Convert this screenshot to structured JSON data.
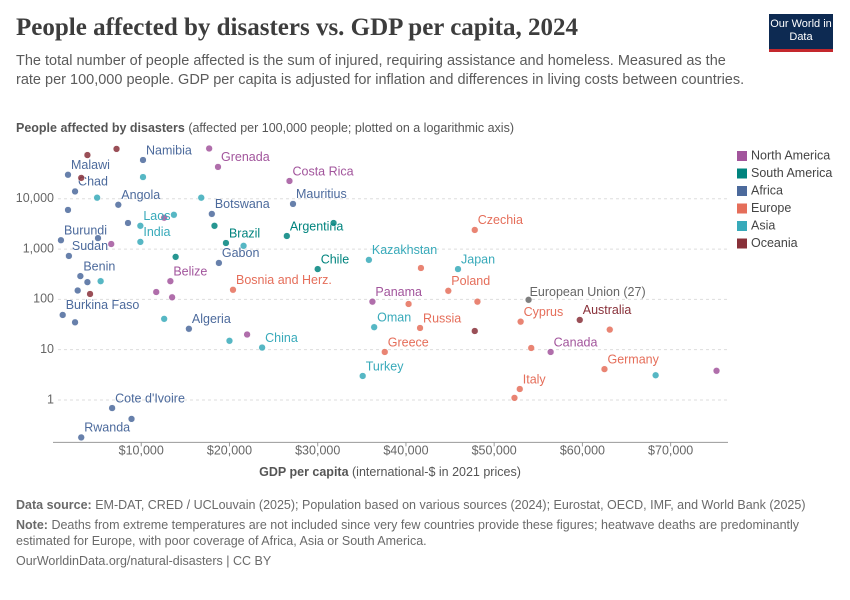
{
  "chart_data": {
    "type": "scatter",
    "title": "People affected by disasters vs. GDP per capita, 2024",
    "subtitle": "The total number of people affected is the sum of injured, requiring assistance and homeless. Measured as the rate per 100,000 people. GDP per capita is adjusted for inflation and differences in living costs between countries.",
    "logo": "Our World in Data",
    "y_label_bold": "People affected by disasters",
    "y_label_rest": "(affected per 100,000 people; plotted on a logarithmic axis)",
    "x_label_bold": "GDP per capita",
    "x_label_rest": "(international-$ in 2021 prices)",
    "source_bold": "Data source:",
    "source": "EM-DAT, CRED / UCLouvain (2025); Population based on various sources (2024); Eurostat, OECD, IMF, and World Bank (2025)",
    "note_bold": "Note:",
    "note": "Deaths from extreme temperatures are not included since very few countries provide these figures; heatwave deaths are predominantly estimated for Europe, with poor coverage of Africa, Asia or South America.",
    "url": "OurWorldinData.org/natural-disasters | CC BY",
    "log_y": true,
    "grid": true,
    "legend": "right",
    "xlim": [
      0,
      76500
    ],
    "ylim": [
      0.15,
      120000
    ],
    "xticks": [
      {
        "value": 10000,
        "label": "$10,000"
      },
      {
        "value": 20000,
        "label": "$20,000"
      },
      {
        "value": 30000,
        "label": "$30,000"
      },
      {
        "value": 40000,
        "label": "$40,000"
      },
      {
        "value": 50000,
        "label": "$50,000"
      },
      {
        "value": 60000,
        "label": "$60,000"
      },
      {
        "value": 70000,
        "label": "$70,000"
      }
    ],
    "yticks": [
      1,
      10,
      100,
      {
        "value": 1000,
        "label": "1,000"
      },
      {
        "value": 10000,
        "label": "10,000"
      }
    ],
    "series": [
      {
        "name": "North America",
        "color": "#a2559c",
        "x": [
          18700,
          17700,
          26800,
          13300,
          11700,
          13500,
          12600,
          22000,
          36200,
          56400,
          75200,
          6600
        ],
        "y": [
          43000,
          100000,
          22600,
          230,
          140,
          110,
          4200,
          20,
          90,
          9,
          3.8,
          1260
        ],
        "labels": [
          "Grenada",
          null,
          "Costa Rica",
          "Belize",
          null,
          null,
          null,
          null,
          "Panama",
          "Canada",
          null,
          null
        ]
      },
      {
        "name": "South America",
        "color": "#00847e",
        "x": [
          26500,
          30000,
          19600,
          18300,
          31800,
          13900
        ],
        "y": [
          1820,
          400,
          1320,
          2900,
          3300,
          700
        ],
        "labels": [
          "Argentina",
          "Chile",
          "Brazil",
          null,
          null,
          null
        ]
      },
      {
        "name": "Africa",
        "color": "#4c6a9c",
        "x": [
          1700,
          10200,
          2500,
          7400,
          27200,
          18000,
          900,
          1800,
          18800,
          3100,
          1100,
          15400,
          6700,
          3200,
          8900,
          2500,
          2800,
          5100,
          8500,
          1700,
          3900
        ],
        "y": [
          30000,
          59000,
          14000,
          7600,
          7900,
          5000,
          1500,
          730,
          530,
          290,
          49,
          26,
          0.69,
          0.18,
          0.42,
          35,
          150,
          1650,
          3300,
          6000,
          220
        ],
        "labels": [
          "Malawi",
          "Namibia",
          "Chad",
          "Angola",
          "Mauritius",
          "Botswana",
          "Burundi",
          "Sudan",
          "Gabon",
          "Benin",
          "Burkina Faso",
          "Algeria",
          "Cote d'Ivoire",
          "Rwanda",
          null,
          null,
          null,
          null,
          null,
          null,
          null
        ]
      },
      {
        "name": "Europe",
        "color": "#e56e5a",
        "x": [
          47800,
          20400,
          44800,
          53000,
          41600,
          37600,
          52900,
          62500,
          52300,
          54200,
          63100,
          48100,
          41700,
          40300
        ],
        "y": [
          2400,
          155,
          148,
          36,
          27,
          9,
          1.65,
          4.1,
          1.1,
          10.8,
          25,
          90,
          420,
          81
        ],
        "labels": [
          "Czechia",
          "Bosnia and Herz.",
          "Poland",
          "Cyprus",
          "Russia",
          "Greece",
          "Italy",
          "Germany",
          null,
          null,
          null,
          null,
          null,
          null
        ]
      },
      {
        "name": "Asia",
        "color": "#38aaba",
        "x": [
          9900,
          9900,
          35800,
          45900,
          36400,
          23700,
          35100,
          68300,
          10200,
          16800,
          13700,
          21600,
          20000,
          12600,
          5400,
          5000
        ],
        "y": [
          2900,
          1390,
          610,
          400,
          28,
          11,
          3,
          3.1,
          27000,
          10500,
          4800,
          1160,
          15,
          41,
          230,
          10500
        ],
        "labels": [
          "Laos",
          "India",
          "Kazakhstan",
          "Japan",
          "Oman",
          "China",
          "Turkey",
          null,
          null,
          null,
          null,
          null,
          null,
          null,
          null,
          null
        ]
      },
      {
        "name": "Oceania",
        "color": "#883039",
        "x": [
          59700,
          7200,
          3900,
          3200,
          47800,
          4200
        ],
        "y": [
          39,
          98000,
          74000,
          26000,
          23.5,
          128
        ],
        "labels": [
          "Australia",
          null,
          null,
          null,
          null,
          null
        ]
      }
    ],
    "extra_points": [
      {
        "label": "European Union (27)",
        "x": 53900,
        "y": 98,
        "color": "#7f7f7f"
      }
    ]
  }
}
